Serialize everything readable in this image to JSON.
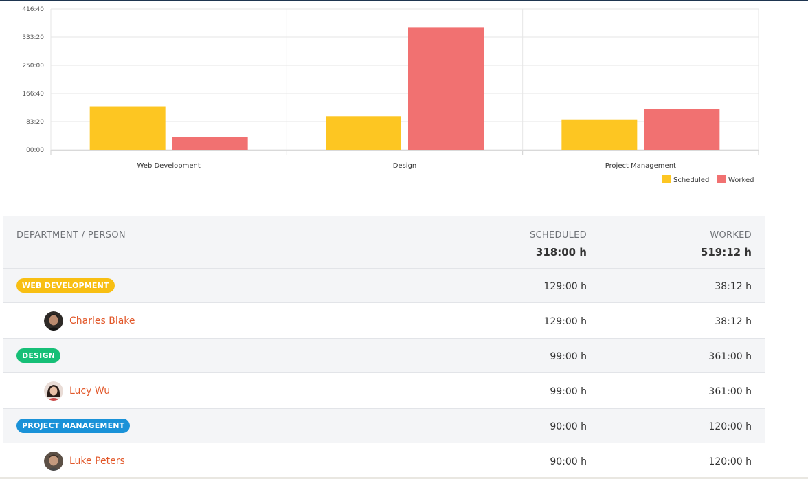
{
  "chart_data": {
    "type": "bar",
    "categories": [
      "Web Development",
      "Design",
      "Project Management"
    ],
    "series": [
      {
        "name": "Scheduled",
        "values": [
          129,
          99,
          90
        ],
        "color": "#fdc622"
      },
      {
        "name": "Worked",
        "values": [
          38.2,
          361,
          120
        ],
        "color": "#f17171"
      }
    ],
    "ylim": [
      0,
      416.6667
    ],
    "yticks": [
      {
        "value": 0,
        "label": "00:00"
      },
      {
        "value": 83.3333,
        "label": "83:20"
      },
      {
        "value": 166.6667,
        "label": "166:40"
      },
      {
        "value": 250,
        "label": "250:00"
      },
      {
        "value": 333.3333,
        "label": "333:20"
      },
      {
        "value": 416.6667,
        "label": "416:40"
      }
    ],
    "grid": true,
    "legend_position": "bottom-right"
  },
  "table": {
    "header": {
      "name_label": "DEPARTMENT / PERSON",
      "scheduled_label": "SCHEDULED",
      "worked_label": "WORKED",
      "scheduled_total": "318:00 h",
      "worked_total": "519:12 h"
    },
    "groups": [
      {
        "department": "WEB DEVELOPMENT",
        "scheduled": "129:00 h",
        "worked": "38:12 h",
        "person": {
          "name": "Charles Blake",
          "scheduled": "129:00 h",
          "worked": "38:12 h"
        }
      },
      {
        "department": "DESIGN",
        "scheduled": "99:00 h",
        "worked": "361:00 h",
        "person": {
          "name": "Lucy Wu",
          "scheduled": "99:00 h",
          "worked": "361:00 h"
        }
      },
      {
        "department": "PROJECT MANAGEMENT",
        "scheduled": "90:00 h",
        "worked": "120:00 h",
        "person": {
          "name": "Luke Peters",
          "scheduled": "90:00 h",
          "worked": "120:00 h"
        }
      }
    ]
  },
  "colors": {
    "web_development": "#f8bf13",
    "design": "#16bf77",
    "project_management": "#1a92d8",
    "person_link": "#e2582a"
  }
}
